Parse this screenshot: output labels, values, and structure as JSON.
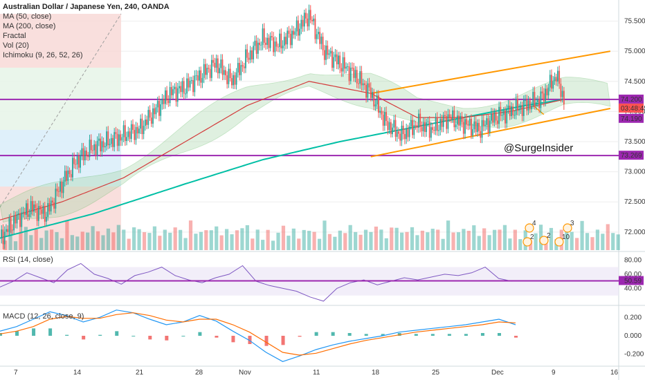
{
  "colors": {
    "up": "#26a69a",
    "down": "#ef5350",
    "purple": "#9c27b0",
    "ma50": "#2196f3",
    "ma200": "#00bfa5",
    "ichi_red": "#d33a3a",
    "ichi_green": "#4caf50",
    "cloud_green": "#a5d6a7",
    "cloud_red": "#ef9a9a",
    "channel": "#ff9800",
    "rsi": "#7e57c2",
    "macd": "#2196f3",
    "signal": "#ff6d00",
    "price_tag": "#ff5252",
    "grid": "#eeeeee"
  },
  "legend": {
    "title": "Australian Dollar / Japanese Yen, 240, OANDA",
    "items": [
      "MA (50, close)",
      "MA (200, close)",
      "Fractal",
      "Vol (20)",
      "Ichimoku (9, 26, 52, 26)"
    ]
  },
  "watermark": "@SurgeInsider",
  "price_tags": {
    "current": "74.200",
    "countdown": "03:48:45",
    "ma": "74.190",
    "support": "73.269"
  },
  "rsi_panel": {
    "label": "RSI (14, close)",
    "value": "50.59",
    "ticks": [
      "80.00",
      "60.00",
      "40.00"
    ]
  },
  "macd_panel": {
    "label": "MACD (12, 26, close, 9)",
    "ticks": [
      "0.200",
      "0.000",
      "-0.200"
    ]
  },
  "x_labels": [
    "7",
    "14",
    "21",
    "28",
    "Nov",
    "11",
    "18",
    "25",
    "Dec",
    "9",
    "16"
  ],
  "event_markers": [
    "4",
    "2",
    "2",
    "10",
    "3"
  ],
  "chart_data": {
    "type": "candlestick",
    "title": "Australian Dollar / Japanese Yen, 240, OANDA",
    "price_ticks": [
      75.5,
      75.0,
      74.5,
      74.0,
      73.5,
      73.0,
      72.5,
      72.0
    ],
    "price_ylim": [
      71.7,
      75.85
    ],
    "support_level": 73.269,
    "resistance_level": 74.2,
    "current_price": 74.2,
    "ma_value": 74.19,
    "price_path": [
      [
        0,
        71.9
      ],
      [
        10,
        72.2
      ],
      [
        20,
        72.4
      ],
      [
        30,
        72.3
      ],
      [
        40,
        72.8
      ],
      [
        50,
        73.2
      ],
      [
        60,
        73.4
      ],
      [
        70,
        73.5
      ],
      [
        80,
        73.6
      ],
      [
        90,
        73.7
      ],
      [
        100,
        74.0
      ],
      [
        110,
        74.3
      ],
      [
        120,
        74.4
      ],
      [
        130,
        74.6
      ],
      [
        140,
        74.8
      ],
      [
        150,
        74.5
      ],
      [
        160,
        74.9
      ],
      [
        170,
        75.2
      ],
      [
        180,
        75.1
      ],
      [
        190,
        75.3
      ],
      [
        200,
        75.6
      ],
      [
        210,
        75.0
      ],
      [
        220,
        74.8
      ],
      [
        230,
        74.6
      ],
      [
        240,
        74.3
      ],
      [
        250,
        73.8
      ],
      [
        260,
        73.6
      ],
      [
        270,
        73.8
      ],
      [
        280,
        73.7
      ],
      [
        290,
        73.9
      ],
      [
        300,
        73.8
      ],
      [
        310,
        73.7
      ],
      [
        320,
        73.9
      ],
      [
        330,
        74.0
      ],
      [
        340,
        74.1
      ],
      [
        350,
        74.2
      ],
      [
        360,
        74.6
      ],
      [
        365,
        74.2
      ]
    ],
    "ma50": [
      [
        0,
        72.2
      ],
      [
        40,
        72.5
      ],
      [
        80,
        72.9
      ],
      [
        120,
        73.5
      ],
      [
        160,
        74.1
      ],
      [
        200,
        74.5
      ],
      [
        240,
        74.3
      ],
      [
        270,
        73.9
      ],
      [
        300,
        73.9
      ],
      [
        330,
        74.0
      ],
      [
        365,
        74.2
      ]
    ],
    "ma200": [
      [
        0,
        71.9
      ],
      [
        60,
        72.3
      ],
      [
        120,
        72.8
      ],
      [
        170,
        73.2
      ],
      [
        220,
        73.5
      ],
      [
        260,
        73.7
      ],
      [
        300,
        73.9
      ],
      [
        340,
        74.1
      ],
      [
        365,
        74.2
      ]
    ],
    "channel_upper": [
      [
        240,
        74.3
      ],
      [
        395,
        75.0
      ]
    ],
    "channel_lower": [
      [
        240,
        73.25
      ],
      [
        395,
        74.05
      ]
    ],
    "rsi": {
      "ylim": [
        20,
        90
      ],
      "band": [
        30,
        70
      ],
      "level": 50.59,
      "values": [
        42,
        50,
        62,
        55,
        48,
        66,
        75,
        60,
        54,
        46,
        58,
        63,
        70,
        58,
        52,
        48,
        55,
        60,
        72,
        50,
        44,
        40,
        36,
        28,
        22,
        40,
        48,
        52,
        45,
        50,
        55,
        52,
        56,
        60,
        58,
        62,
        70,
        54,
        50
      ]
    },
    "macd": {
      "ylim": [
        -0.3,
        0.3
      ],
      "macd_values": [
        0.05,
        0.1,
        0.18,
        0.26,
        0.22,
        0.15,
        0.2,
        0.28,
        0.25,
        0.18,
        0.12,
        0.15,
        0.22,
        0.16,
        0.05,
        -0.05,
        -0.18,
        -0.28,
        -0.22,
        -0.15,
        -0.1,
        -0.06,
        -0.03,
        0.0,
        0.04,
        0.06,
        0.08,
        0.1,
        0.12,
        0.15,
        0.18,
        0.12
      ],
      "signal_values": [
        0.02,
        0.05,
        0.1,
        0.18,
        0.21,
        0.19,
        0.19,
        0.23,
        0.25,
        0.22,
        0.17,
        0.15,
        0.18,
        0.18,
        0.12,
        0.04,
        -0.07,
        -0.18,
        -0.21,
        -0.19,
        -0.14,
        -0.09,
        -0.05,
        -0.02,
        0.01,
        0.04,
        0.06,
        0.08,
        0.1,
        0.12,
        0.15,
        0.14
      ]
    },
    "volume": [
      6,
      9,
      5,
      8,
      12,
      7,
      10,
      6,
      9,
      11,
      8,
      7,
      13,
      9,
      6,
      10,
      8,
      12,
      9,
      7,
      11,
      8,
      14,
      9,
      7,
      10,
      12,
      8,
      9,
      11,
      7,
      10,
      8,
      12,
      9,
      7,
      13,
      10,
      8,
      11,
      9,
      12,
      7,
      10,
      8,
      9,
      12,
      11,
      7,
      9
    ]
  }
}
